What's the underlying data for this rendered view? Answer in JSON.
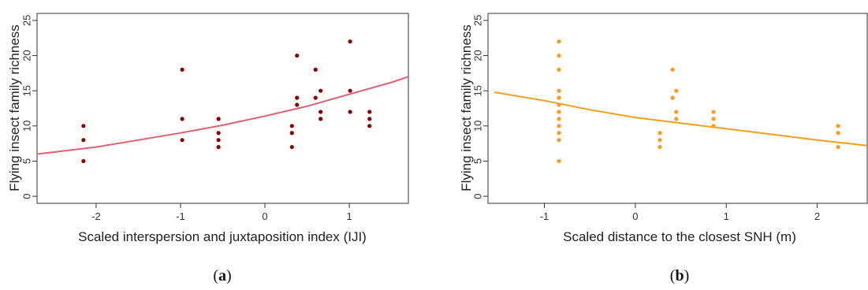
{
  "chart_data": [
    {
      "type": "scatter",
      "panel_label": {
        "open": "(",
        "letter": "a",
        "close": ")"
      },
      "xlabel": "Scaled interspersion and juxtaposition index (IJI)",
      "ylabel": "Flying insect family richness",
      "xlim": [
        -2.7,
        1.7
      ],
      "ylim": [
        -1,
        26
      ],
      "xticks": [
        -2,
        -1,
        0,
        1
      ],
      "yticks": [
        0,
        5,
        10,
        15,
        20,
        25
      ],
      "point_color": "#8b0000",
      "line_color": "#e06070",
      "points": [
        {
          "x": -2.15,
          "y": 10
        },
        {
          "x": -2.15,
          "y": 8
        },
        {
          "x": -2.15,
          "y": 5
        },
        {
          "x": -0.98,
          "y": 18
        },
        {
          "x": -0.98,
          "y": 11
        },
        {
          "x": -0.98,
          "y": 8
        },
        {
          "x": -0.55,
          "y": 11
        },
        {
          "x": -0.55,
          "y": 9
        },
        {
          "x": -0.55,
          "y": 8
        },
        {
          "x": -0.55,
          "y": 7
        },
        {
          "x": 0.32,
          "y": 10
        },
        {
          "x": 0.32,
          "y": 9
        },
        {
          "x": 0.32,
          "y": 7
        },
        {
          "x": 0.38,
          "y": 20
        },
        {
          "x": 0.38,
          "y": 14
        },
        {
          "x": 0.38,
          "y": 13
        },
        {
          "x": 0.6,
          "y": 18
        },
        {
          "x": 0.6,
          "y": 14
        },
        {
          "x": 0.66,
          "y": 15
        },
        {
          "x": 0.66,
          "y": 12
        },
        {
          "x": 0.66,
          "y": 11
        },
        {
          "x": 1.01,
          "y": 22
        },
        {
          "x": 1.01,
          "y": 15
        },
        {
          "x": 1.01,
          "y": 12
        },
        {
          "x": 1.24,
          "y": 12
        },
        {
          "x": 1.24,
          "y": 11
        },
        {
          "x": 1.24,
          "y": 10
        }
      ],
      "fit": {
        "x": [
          -2.7,
          -2.0,
          -1.5,
          -1.0,
          -0.5,
          0.0,
          0.5,
          1.0,
          1.5,
          1.7
        ],
        "y": [
          6.0,
          7.0,
          8.0,
          9.0,
          10.1,
          11.4,
          12.8,
          14.5,
          16.2,
          17.0
        ]
      }
    },
    {
      "type": "scatter",
      "panel_label": {
        "open": "(",
        "letter": "b",
        "close": ")"
      },
      "xlabel": "Scaled distance to the closest SNH (m)",
      "ylabel": "Flying insect family richness",
      "xlim": [
        -1.62,
        2.55
      ],
      "ylim": [
        -1,
        26
      ],
      "xticks": [
        -1,
        0,
        1,
        2
      ],
      "yticks": [
        0,
        5,
        10,
        15,
        20,
        25
      ],
      "point_color": "#ff9a1a",
      "line_color": "#f0a020",
      "points": [
        {
          "x": -0.84,
          "y": 22
        },
        {
          "x": -0.84,
          "y": 20
        },
        {
          "x": -0.84,
          "y": 18
        },
        {
          "x": -0.84,
          "y": 15
        },
        {
          "x": -0.84,
          "y": 14
        },
        {
          "x": -0.84,
          "y": 13
        },
        {
          "x": -0.84,
          "y": 12
        },
        {
          "x": -0.84,
          "y": 11
        },
        {
          "x": -0.84,
          "y": 10
        },
        {
          "x": -0.84,
          "y": 9
        },
        {
          "x": -0.84,
          "y": 8
        },
        {
          "x": -0.84,
          "y": 5
        },
        {
          "x": 0.27,
          "y": 9
        },
        {
          "x": 0.27,
          "y": 8
        },
        {
          "x": 0.27,
          "y": 7
        },
        {
          "x": 0.41,
          "y": 18
        },
        {
          "x": 0.41,
          "y": 14
        },
        {
          "x": 0.45,
          "y": 15
        },
        {
          "x": 0.45,
          "y": 12
        },
        {
          "x": 0.45,
          "y": 11
        },
        {
          "x": 0.86,
          "y": 12
        },
        {
          "x": 0.86,
          "y": 11
        },
        {
          "x": 0.86,
          "y": 10
        },
        {
          "x": 2.23,
          "y": 10
        },
        {
          "x": 2.23,
          "y": 9
        },
        {
          "x": 2.23,
          "y": 7
        }
      ],
      "fit": {
        "x": [
          -1.55,
          -1.0,
          -0.5,
          0.0,
          0.5,
          1.0,
          1.5,
          2.0,
          2.55
        ],
        "y": [
          14.8,
          13.6,
          12.3,
          11.2,
          10.4,
          9.6,
          8.8,
          8.0,
          7.2
        ]
      }
    }
  ]
}
